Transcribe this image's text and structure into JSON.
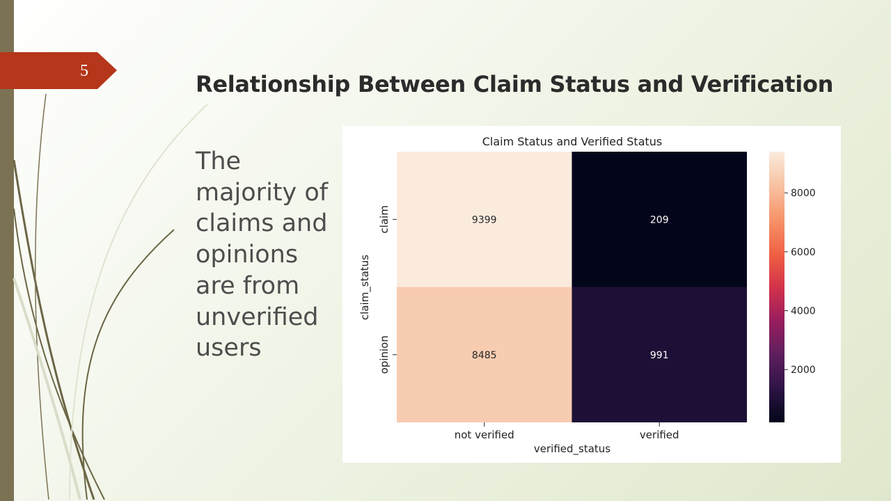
{
  "slide": {
    "number": "5",
    "title": "Relationship Between Claim Status and Verification",
    "body": "The majority of claims and opinions are from unverified users"
  },
  "chart_data": {
    "type": "heatmap",
    "title": "Claim Status and Verified Status",
    "xlabel": "verified_status",
    "ylabel": "claim_status",
    "x_categories": [
      "not verified",
      "verified"
    ],
    "y_categories": [
      "claim",
      "opinion"
    ],
    "values": [
      [
        9399,
        209
      ],
      [
        8485,
        991
      ]
    ],
    "colorbar": {
      "min": 209,
      "max": 9399,
      "ticks": [
        2000,
        4000,
        6000,
        8000
      ]
    },
    "colormap": [
      "#03051a",
      "#2b1343",
      "#5e1f5e",
      "#9b1e5e",
      "#d3324a",
      "#f06043",
      "#f6946a",
      "#f8c4a4",
      "#faebdd"
    ]
  }
}
